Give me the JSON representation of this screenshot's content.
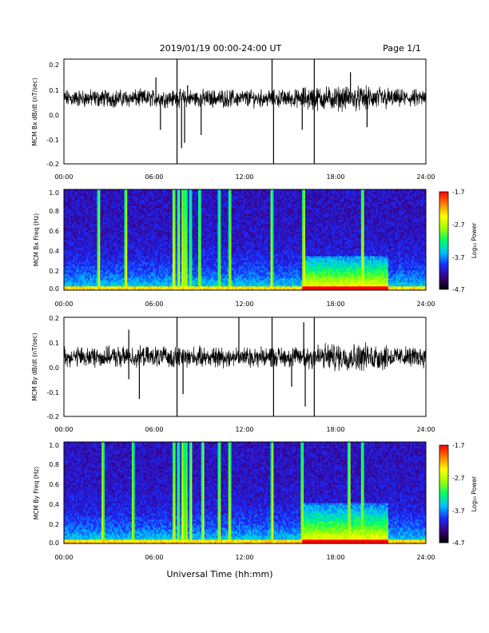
{
  "header": {
    "date_range": "2019/01/19  00:00-24:00 UT",
    "page": "Page 1/1"
  },
  "x_axis_title": "Universal Time (hh:mm)",
  "colorbar": {
    "label": "Log₁₀ Power",
    "ticks": [
      "-1.7",
      "-2.7",
      "-3.7",
      "-4.7"
    ],
    "range": [
      -4.7,
      -1.7
    ],
    "colors": [
      "#000000",
      "#3b0080",
      "#1a2bff",
      "#00c0ff",
      "#00ff66",
      "#9cff00",
      "#ffff00",
      "#ff8000",
      "#ff0000"
    ]
  },
  "chart_data": [
    {
      "type": "line",
      "ylabel": "MCM Bx dB/dt (nT/sec)",
      "xlim": [
        0,
        24
      ],
      "ylim": [
        -0.2,
        0.2
      ],
      "x_ticks": [
        "00:00",
        "06:00",
        "12:00",
        "18:00",
        "24:00"
      ],
      "y_ticks": [
        "0.2",
        "0.1",
        "0.0",
        "-0.1",
        "-0.2"
      ],
      "baseline": 0.05,
      "noise_amplitude": 0.025,
      "spikes": [
        {
          "t": 6.1,
          "v": 0.13
        },
        {
          "t": 6.4,
          "v": -0.07
        },
        {
          "t": 7.5,
          "v": 0.22
        },
        {
          "t": 7.5,
          "v": -0.2
        },
        {
          "t": 7.8,
          "v": -0.14
        },
        {
          "t": 8.0,
          "v": -0.12
        },
        {
          "t": 8.2,
          "v": 0.1
        },
        {
          "t": 9.1,
          "v": -0.09
        },
        {
          "t": 13.8,
          "v": 0.2
        },
        {
          "t": 13.9,
          "v": -0.2
        },
        {
          "t": 16.6,
          "v": 0.22
        },
        {
          "t": 16.6,
          "v": -0.2
        },
        {
          "t": 15.8,
          "v": -0.07
        },
        {
          "t": 19.0,
          "v": 0.15
        },
        {
          "t": 20.1,
          "v": -0.06
        }
      ]
    },
    {
      "type": "heatmap",
      "ylabel": "MCM Bx Freq (Hz)",
      "xlim": [
        0,
        24
      ],
      "ylim": [
        0,
        1.0
      ],
      "x_ticks": [
        "00:00",
        "06:00",
        "12:00",
        "18:00",
        "24:00"
      ],
      "y_ticks": [
        "1.0",
        "0.8",
        "0.6",
        "0.4",
        "0.2",
        "0.0"
      ],
      "zlim": [
        -4.7,
        -1.7
      ],
      "broadband_times": [
        2.3,
        4.1,
        7.3,
        7.6,
        7.9,
        8.1,
        8.4,
        9.0,
        10.3,
        11.0,
        13.8,
        15.9,
        19.8
      ],
      "enhanced_band": {
        "t_start": 15.8,
        "t_end": 21.5,
        "f_max": 0.35
      }
    },
    {
      "type": "line",
      "ylabel": "MCM By dB/dt (nT/sec)",
      "xlim": [
        0,
        24
      ],
      "ylim": [
        -0.2,
        0.2
      ],
      "x_ticks": [
        "00:00",
        "06:00",
        "12:00",
        "18:00",
        "24:00"
      ],
      "y_ticks": [
        "0.2",
        "0.1",
        "0.0",
        "-0.1",
        "-0.2"
      ],
      "baseline": 0.04,
      "noise_amplitude": 0.03,
      "spikes": [
        {
          "t": 4.3,
          "v": 0.15
        },
        {
          "t": 4.3,
          "v": -0.05
        },
        {
          "t": 5.0,
          "v": -0.13
        },
        {
          "t": 7.5,
          "v": 0.2
        },
        {
          "t": 7.5,
          "v": -0.2
        },
        {
          "t": 7.9,
          "v": -0.11
        },
        {
          "t": 11.6,
          "v": 0.2
        },
        {
          "t": 13.8,
          "v": 0.2
        },
        {
          "t": 13.9,
          "v": -0.2
        },
        {
          "t": 15.9,
          "v": 0.18
        },
        {
          "t": 16.0,
          "v": -0.16
        },
        {
          "t": 16.6,
          "v": 0.22
        },
        {
          "t": 16.6,
          "v": -0.2
        },
        {
          "t": 15.1,
          "v": -0.08
        }
      ]
    },
    {
      "type": "heatmap",
      "ylabel": "MCM By Freq (Hz)",
      "xlim": [
        0,
        24
      ],
      "ylim": [
        0,
        1.0
      ],
      "x_ticks": [
        "00:00",
        "06:00",
        "12:00",
        "18:00",
        "24:00"
      ],
      "y_ticks": [
        "1.0",
        "0.8",
        "0.6",
        "0.4",
        "0.2",
        "0.0"
      ],
      "zlim": [
        -4.7,
        -1.7
      ],
      "broadband_times": [
        2.6,
        4.6,
        7.3,
        7.6,
        7.9,
        8.1,
        8.4,
        9.2,
        10.3,
        11.0,
        13.8,
        15.8,
        18.9,
        19.8
      ],
      "enhanced_band": {
        "t_start": 15.8,
        "t_end": 21.5,
        "f_max": 0.4
      }
    }
  ]
}
